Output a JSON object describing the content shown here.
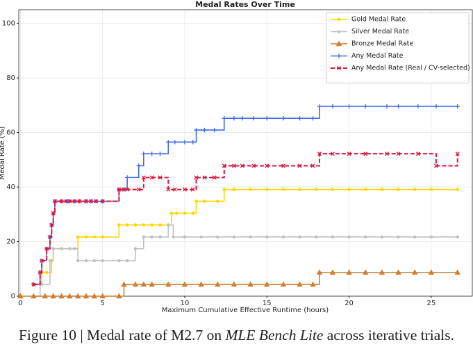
{
  "chart_data": {
    "type": "line",
    "drawstyle": "steps-post",
    "title": "Medal Rates Over Time",
    "xlabel": "Maximum Cumulative Effective Runtime (hours)",
    "ylabel": "Medal Rate (%)",
    "xlim": [
      -0.1,
      27.5
    ],
    "ylim": [
      0,
      105
    ],
    "xticks": [
      0,
      5,
      10,
      15,
      20,
      25
    ],
    "yticks": [
      0,
      20,
      40,
      60,
      80,
      100
    ],
    "grid": true,
    "legend": "upper right",
    "series": [
      {
        "name": "Gold Medal Rate",
        "color": "#FFD700",
        "marker": "circle",
        "linestyle": "solid",
        "x": [
          0.8,
          1.2,
          1.3,
          1.6,
          1.9,
          2.0,
          2.5,
          3.0,
          3.3,
          3.5,
          4.0,
          4.5,
          5.0,
          6.0,
          6.5,
          7.0,
          7.5,
          8.0,
          8.5,
          9.0,
          9.2,
          9.5,
          10.0,
          10.5,
          10.7,
          11.2,
          12.0,
          12.4,
          13.0,
          14.0,
          15.0,
          16.0,
          17.0,
          18.0,
          19.0,
          20.0,
          21.0,
          22.0,
          23.0,
          24.0,
          25.0,
          26.6
        ],
        "values": [
          4.3,
          4.3,
          8.7,
          8.7,
          13.0,
          17.4,
          17.4,
          17.4,
          17.4,
          21.7,
          21.7,
          21.7,
          21.7,
          26.1,
          26.1,
          26.1,
          26.1,
          26.1,
          26.1,
          26.1,
          30.4,
          30.4,
          30.4,
          30.4,
          34.8,
          34.8,
          34.8,
          39.1,
          39.1,
          39.1,
          39.1,
          39.1,
          39.1,
          39.1,
          39.1,
          39.1,
          39.1,
          39.1,
          39.1,
          39.1,
          39.1,
          39.1
        ]
      },
      {
        "name": "Silver Medal Rate",
        "color": "#C0C0C0",
        "marker": "circle",
        "linestyle": "solid",
        "x": [
          0.8,
          1.2,
          1.3,
          1.8,
          2.0,
          2.5,
          3.0,
          3.3,
          3.5,
          4.0,
          4.5,
          5.0,
          6.0,
          6.5,
          7.0,
          7.5,
          8.0,
          8.5,
          9.0,
          9.3,
          10.0,
          11.0,
          12.0,
          13.0,
          14.0,
          15.0,
          16.0,
          17.0,
          18.0,
          19.0,
          20.0,
          21.0,
          22.0,
          23.0,
          24.0,
          25.0,
          26.6
        ],
        "values": [
          0,
          4.3,
          4.3,
          13.0,
          17.4,
          17.4,
          17.4,
          17.4,
          13.0,
          13.0,
          13.0,
          13.0,
          13.0,
          13.0,
          17.4,
          21.7,
          21.7,
          21.7,
          26.1,
          21.7,
          21.7,
          21.7,
          21.7,
          21.7,
          21.7,
          21.7,
          21.7,
          21.7,
          21.7,
          21.7,
          21.7,
          21.7,
          21.7,
          21.7,
          21.7,
          21.7,
          21.7
        ]
      },
      {
        "name": "Bronze Medal Rate",
        "color": "#CD7F32",
        "marker": "triangle",
        "linestyle": "solid",
        "x": [
          0,
          0.8,
          1.5,
          2.0,
          2.5,
          3.0,
          3.5,
          4.0,
          4.5,
          5.0,
          6.0,
          6.3,
          7.0,
          7.5,
          8.0,
          9.0,
          10.0,
          11.0,
          12.0,
          13.0,
          14.0,
          15.0,
          16.0,
          17.0,
          17.8,
          18.2,
          19.0,
          20.0,
          21.0,
          22.0,
          23.0,
          24.0,
          25.0,
          26.6
        ],
        "values": [
          0,
          0,
          0,
          0,
          0,
          0,
          0,
          0,
          0,
          0,
          0,
          4.3,
          4.3,
          4.3,
          4.3,
          4.3,
          4.3,
          4.3,
          4.3,
          4.3,
          4.3,
          4.3,
          4.3,
          4.3,
          4.3,
          8.7,
          8.7,
          8.7,
          8.7,
          8.7,
          8.7,
          8.7,
          8.7,
          8.7
        ]
      },
      {
        "name": "Any Medal Rate",
        "color": "#4169E1",
        "marker": "plus",
        "linestyle": "solid",
        "x": [
          0.8,
          1.2,
          1.3,
          1.6,
          1.8,
          1.9,
          2.0,
          2.1,
          2.5,
          2.8,
          3.0,
          3.3,
          3.6,
          4.0,
          4.3,
          4.6,
          5.0,
          6.0,
          6.3,
          6.5,
          7.2,
          7.5,
          8.0,
          8.5,
          9.0,
          9.4,
          10.0,
          10.5,
          10.7,
          11.2,
          11.8,
          12.4,
          13.0,
          13.5,
          14.2,
          15.0,
          16.0,
          17.0,
          17.8,
          18.2,
          19.0,
          20.0,
          21.0,
          22.3,
          23.0,
          24.2,
          25.3,
          26.6
        ],
        "values": [
          4.3,
          8.7,
          13.0,
          17.4,
          21.7,
          26.1,
          30.4,
          34.8,
          34.8,
          34.8,
          34.8,
          34.8,
          34.8,
          34.8,
          34.8,
          34.8,
          34.8,
          39.1,
          39.1,
          43.5,
          47.8,
          52.2,
          52.2,
          52.2,
          56.5,
          56.5,
          56.5,
          56.5,
          60.9,
          60.9,
          60.9,
          65.2,
          65.2,
          65.2,
          65.2,
          65.2,
          65.2,
          65.2,
          65.2,
          69.6,
          69.6,
          69.6,
          69.6,
          69.6,
          69.6,
          69.6,
          69.6,
          69.6
        ]
      },
      {
        "name": "Any Medal Rate (Real / CV-selected)",
        "color": "#DC143C",
        "marker": "x",
        "linestyle": "dashed",
        "x": [
          0.8,
          1.2,
          1.3,
          1.6,
          1.8,
          1.9,
          2.0,
          2.1,
          2.5,
          2.8,
          3.0,
          3.3,
          3.6,
          4.0,
          4.3,
          4.6,
          5.0,
          6.0,
          6.3,
          6.5,
          7.2,
          7.5,
          8.0,
          8.5,
          9.0,
          9.4,
          10.0,
          10.5,
          10.7,
          11.2,
          11.8,
          12.4,
          13.0,
          13.5,
          14.2,
          15.0,
          16.0,
          17.0,
          17.8,
          18.2,
          19.0,
          20.0,
          21.0,
          22.3,
          23.0,
          24.2,
          25.3,
          26.6
        ],
        "values": [
          4.3,
          8.7,
          13.0,
          17.4,
          21.7,
          26.1,
          30.4,
          34.8,
          34.8,
          34.8,
          34.8,
          34.8,
          34.8,
          34.8,
          34.8,
          34.8,
          34.8,
          39.1,
          39.1,
          39.1,
          39.1,
          43.5,
          43.5,
          43.5,
          39.1,
          39.1,
          39.1,
          39.1,
          43.5,
          43.5,
          43.5,
          47.8,
          47.8,
          47.8,
          47.8,
          47.8,
          47.8,
          47.8,
          47.8,
          52.2,
          52.2,
          52.2,
          52.2,
          52.2,
          52.2,
          52.2,
          47.8,
          52.2
        ]
      }
    ]
  },
  "caption": {
    "lead": "Figure 10 | Medal rate of M2.7 on ",
    "emph": "MLE Bench Lite",
    "tail": " across iterative trials."
  }
}
